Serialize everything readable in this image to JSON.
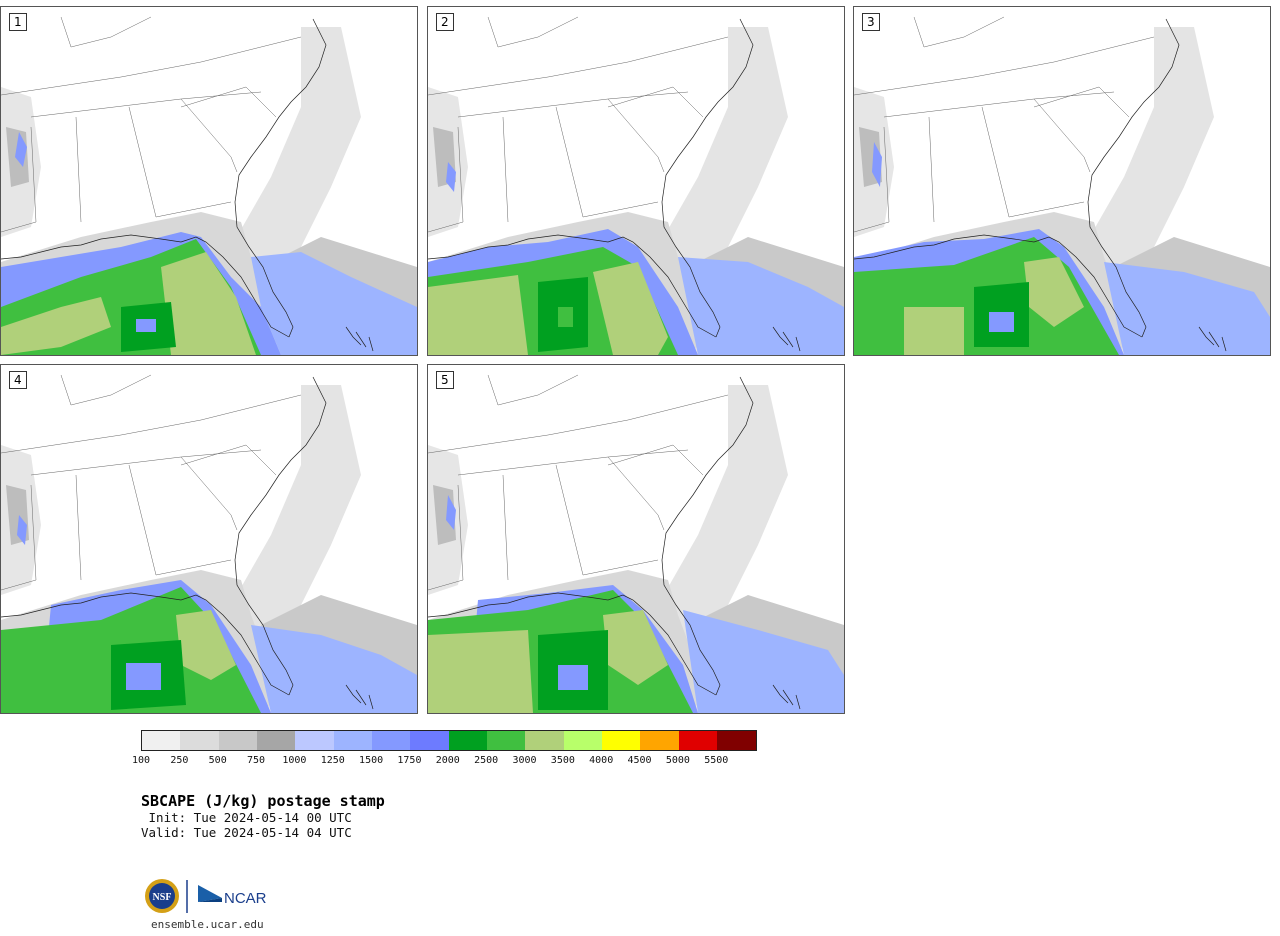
{
  "panels": [
    {
      "number": "1"
    },
    {
      "number": "2"
    },
    {
      "number": "3"
    },
    {
      "number": "4"
    },
    {
      "number": "5"
    }
  ],
  "colorbar": {
    "colors": [
      "#f0f0f0",
      "#dcdcdc",
      "#c8c8c8",
      "#a6a6a6",
      "#bcc8ff",
      "#9db4ff",
      "#8499ff",
      "#6d7bff",
      "#00a020",
      "#40bf40",
      "#b0d07a",
      "#b8ff6a",
      "#ffff00",
      "#ffa500",
      "#e00000",
      "#800000"
    ],
    "tick_labels": [
      "100",
      "250",
      "500",
      "750",
      "1000",
      "1250",
      "1500",
      "1750",
      "2000",
      "2500",
      "3000",
      "3500",
      "4000",
      "4500",
      "5000",
      "5500"
    ]
  },
  "title": "SBCAPE (J/kg) postage stamp",
  "init_line": " Init: Tue 2024-05-14 00 UTC",
  "valid_line": "Valid: Tue 2024-05-14 04 UTC",
  "logos": {
    "nsf_icon": "nsf-logo-icon",
    "ncar_icon": "ncar-logo-icon",
    "ncar_text": "NCAR"
  },
  "website": "ensemble.ucar.edu"
}
